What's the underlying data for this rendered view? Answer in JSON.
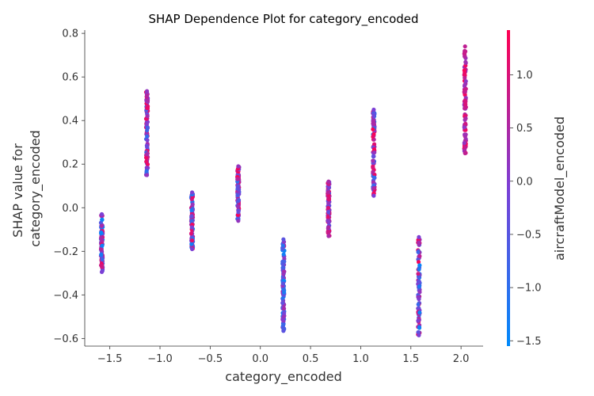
{
  "chart_data": {
    "type": "scatter",
    "title": "SHAP Dependence Plot for category_encoded",
    "xlabel": "category_encoded",
    "ylabel_lines": [
      "SHAP value for",
      "category_encoded"
    ],
    "xlim": [
      -1.75,
      2.22
    ],
    "ylim": [
      -0.635,
      0.815
    ],
    "xticks": [
      -1.5,
      -1.0,
      -0.5,
      0.0,
      0.5,
      1.0,
      1.5,
      2.0
    ],
    "xtick_labels": [
      "−1.5",
      "−1.0",
      "−0.5",
      "0.0",
      "0.5",
      "1.0",
      "1.5",
      "2.0"
    ],
    "yticks": [
      -0.6,
      -0.4,
      -0.2,
      0.0,
      0.2,
      0.4,
      0.6,
      0.8
    ],
    "ytick_labels": [
      "−0.6",
      "−0.4",
      "−0.2",
      "0.0",
      "0.2",
      "0.4",
      "0.6",
      "0.8"
    ],
    "grid": false,
    "colorbar": {
      "label": "aircraftModel_encoded",
      "range": [
        -1.55,
        1.42
      ],
      "ticks": [
        -1.5,
        -1.0,
        -0.5,
        0.0,
        0.5,
        1.0
      ],
      "tick_labels": [
        "−1.5",
        "−1.0",
        "−0.5",
        "0.0",
        "0.5",
        "1.0"
      ],
      "colors": [
        "#008afb",
        "#7b40d6",
        "#ff0052"
      ]
    },
    "clusters": [
      {
        "x": -1.58,
        "ymin": -0.295,
        "ymax": -0.03,
        "color_value_range": [
          -1.5,
          1.4
        ]
      },
      {
        "x": -1.13,
        "ymin": 0.15,
        "ymax": 0.535,
        "color_value_range": [
          -1.0,
          1.4
        ]
      },
      {
        "x": -0.68,
        "ymin": -0.19,
        "ymax": 0.07,
        "color_value_range": [
          -1.5,
          1.4
        ]
      },
      {
        "x": -0.22,
        "ymin": -0.06,
        "ymax": 0.19,
        "color_value_range": [
          -1.0,
          1.4
        ]
      },
      {
        "x": 0.23,
        "ymin": -0.565,
        "ymax": -0.145,
        "color_value_range": [
          -1.5,
          0.6
        ]
      },
      {
        "x": 0.68,
        "ymin": -0.13,
        "ymax": 0.12,
        "color_value_range": [
          -0.5,
          1.4
        ]
      },
      {
        "x": 1.13,
        "ymin": 0.055,
        "ymax": 0.45,
        "color_value_range": [
          -1.5,
          1.4
        ]
      },
      {
        "x": 1.58,
        "ymin": -0.585,
        "ymax": -0.135,
        "color_value_range": [
          -1.5,
          1.4
        ]
      },
      {
        "x": 2.04,
        "ymin": 0.25,
        "ymax": 0.74,
        "color_value_range": [
          0.0,
          1.4
        ]
      }
    ]
  }
}
